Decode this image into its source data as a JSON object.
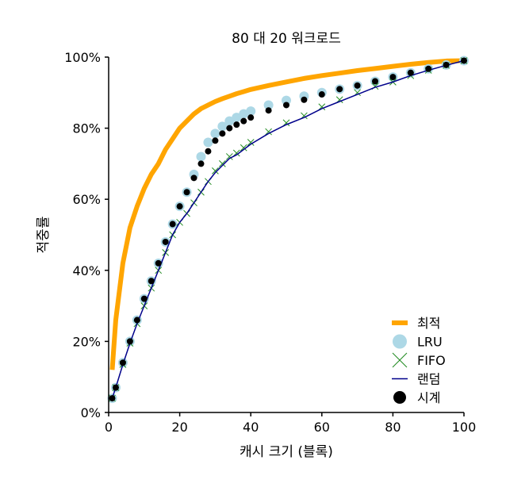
{
  "chart_data": {
    "type": "line",
    "title": "80 대 20 워크로드",
    "xlabel": "캐시 크기 (블록)",
    "ylabel": "적중률",
    "xlim": [
      0,
      100
    ],
    "ylim": [
      0,
      100
    ],
    "xticks": [
      "0",
      "20",
      "40",
      "60",
      "80",
      "100"
    ],
    "yticks": [
      "0%",
      "20%",
      "40%",
      "60%",
      "80%",
      "100%"
    ],
    "grid": false,
    "legend_position": "bottom-right",
    "x": [
      1,
      2,
      4,
      6,
      8,
      10,
      12,
      14,
      16,
      18,
      20,
      22,
      24,
      26,
      28,
      30,
      32,
      34,
      36,
      38,
      40,
      45,
      50,
      55,
      60,
      65,
      70,
      75,
      80,
      85,
      90,
      95,
      100
    ],
    "series": [
      {
        "name": "최적",
        "style": "thick-line",
        "color": "#ffa500",
        "values": [
          12,
          26,
          42,
          52,
          58,
          63,
          67,
          70,
          74,
          77,
          80,
          82,
          84,
          85.5,
          86.5,
          87.5,
          88.3,
          89,
          89.7,
          90.3,
          90.9,
          92,
          93,
          94,
          94.8,
          95.5,
          96.2,
          96.8,
          97.4,
          98,
          98.5,
          98.9,
          99
        ]
      },
      {
        "name": "LRU",
        "style": "large-circle",
        "color": "#add8e6",
        "values": [
          4,
          7,
          14,
          20,
          26,
          32,
          37,
          42,
          48,
          53,
          58,
          62,
          67,
          72,
          76,
          78.5,
          80.5,
          82,
          83,
          84,
          84.8,
          86.5,
          87.8,
          89,
          90,
          91,
          92,
          93.2,
          94.4,
          95.6,
          96.7,
          97.8,
          99
        ]
      },
      {
        "name": "FIFO",
        "style": "x-marker",
        "color": "#228b22",
        "values": [
          4,
          7,
          13.5,
          19.5,
          25,
          30,
          35,
          40,
          45,
          50,
          53.5,
          56,
          59,
          62,
          65,
          68,
          70,
          72,
          73,
          74.5,
          76,
          79,
          81.5,
          83.5,
          86,
          88,
          90,
          91.8,
          93,
          94.8,
          96.3,
          97.7,
          99
        ]
      },
      {
        "name": "랜덤",
        "style": "thin-line",
        "color": "#00008b",
        "values": [
          4,
          7,
          13.5,
          19.5,
          25,
          30,
          35,
          40,
          45,
          50,
          53.5,
          56,
          59,
          62,
          65,
          67.5,
          69.5,
          71.5,
          72.5,
          74,
          75.5,
          78.5,
          81,
          83,
          85.5,
          87.5,
          89.5,
          91.5,
          93,
          94.8,
          96.3,
          97.7,
          99
        ]
      },
      {
        "name": "시계",
        "style": "small-circle",
        "color": "#000000",
        "values": [
          4,
          7,
          14,
          20,
          26,
          32,
          37,
          42,
          48,
          53,
          58,
          62,
          66,
          70,
          73.5,
          76.5,
          78.5,
          80,
          81,
          82,
          83,
          85,
          86.5,
          88,
          89.5,
          91,
          92,
          93.2,
          94.4,
          95.6,
          96.7,
          97.8,
          99
        ]
      }
    ]
  }
}
